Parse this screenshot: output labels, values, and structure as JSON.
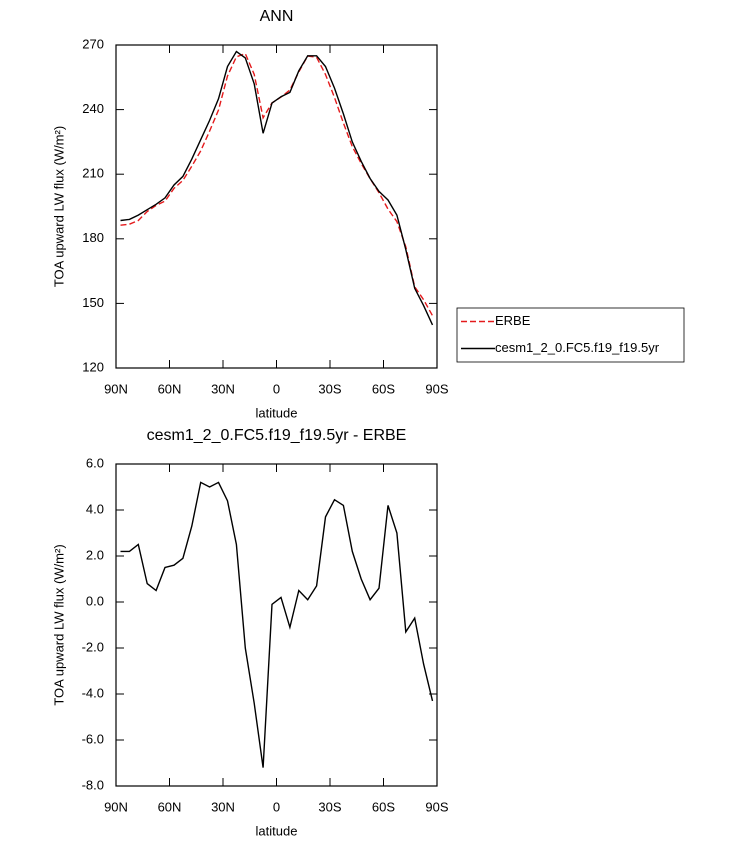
{
  "chart_data": [
    {
      "type": "line",
      "title": "ANN",
      "xlabel": "latitude",
      "ylabel": "TOA upward LW flux (W/m²)",
      "x": [
        87.5,
        82.5,
        77.5,
        72.5,
        67.5,
        62.5,
        57.5,
        52.5,
        47.5,
        42.5,
        37.5,
        32.5,
        27.5,
        22.5,
        17.5,
        12.5,
        7.5,
        2.5,
        -2.5,
        -7.5,
        -12.5,
        -17.5,
        -22.5,
        -27.5,
        -32.5,
        -37.5,
        -42.5,
        -47.5,
        -52.5,
        -57.5,
        -62.5,
        -67.5,
        -72.5,
        -77.5,
        -82.5,
        -87.5
      ],
      "series": [
        {
          "name": "ERBE",
          "color": "#e41a1c",
          "style": "dashed",
          "values": [
            186.3,
            186.8,
            188.5,
            192.7,
            195.5,
            197.5,
            203.4,
            207.1,
            213.7,
            220.8,
            230,
            239.8,
            255.6,
            264.5,
            266,
            256.4,
            236.2,
            243.1,
            245.8,
            249.1,
            257.5,
            264.9,
            264.3,
            256.3,
            245.6,
            233.8,
            222.8,
            215,
            207.9,
            201.4,
            193.8,
            188,
            176.3,
            157.7,
            151.7,
            144.3
          ]
        },
        {
          "name": "cesm1_2_0.FC5.f19_f19.5yr",
          "color": "#000000",
          "style": "solid",
          "values": [
            188.5,
            189,
            191,
            193.5,
            196,
            199,
            205,
            209,
            217,
            226,
            235,
            245,
            260,
            267,
            264,
            252,
            229,
            243,
            246,
            248,
            258,
            265,
            265,
            260,
            250,
            238,
            225,
            216,
            208,
            202,
            198,
            191,
            175,
            157,
            149,
            140
          ]
        }
      ],
      "xlim": [
        90,
        -90
      ],
      "xticks": [
        {
          "value": 90,
          "label": "90N"
        },
        {
          "value": 60,
          "label": "60N"
        },
        {
          "value": 30,
          "label": "30N"
        },
        0,
        {
          "value": -30,
          "label": "30S"
        },
        {
          "value": -60,
          "label": "60S"
        },
        {
          "value": -90,
          "label": "90S"
        }
      ],
      "ylim": [
        120,
        270
      ],
      "yticks": [
        120,
        150,
        180,
        210,
        240,
        270
      ],
      "legend": "outside right"
    },
    {
      "type": "line",
      "title": "cesm1_2_0.FC5.f19_f19.5yr - ERBE",
      "xlabel": "latitude",
      "ylabel": "TOA upward LW flux (W/m²)",
      "x": [
        87.5,
        82.5,
        77.5,
        72.5,
        67.5,
        62.5,
        57.5,
        52.5,
        47.5,
        42.5,
        37.5,
        32.5,
        27.5,
        22.5,
        17.5,
        12.5,
        7.5,
        2.5,
        -2.5,
        -7.5,
        -12.5,
        -17.5,
        -22.5,
        -27.5,
        -32.5,
        -37.5,
        -42.5,
        -47.5,
        -52.5,
        -57.5,
        -62.5,
        -67.5,
        -72.5,
        -77.5,
        -82.5,
        -87.5
      ],
      "color": "#000000",
      "values": [
        2.2,
        2.2,
        2.5,
        0.8,
        0.5,
        1.5,
        1.6,
        1.9,
        3.3,
        5.2,
        5.0,
        5.2,
        4.4,
        2.5,
        -2.0,
        -4.4,
        -7.2,
        -0.1,
        0.2,
        -1.1,
        0.5,
        0.1,
        0.7,
        3.7,
        4.45,
        4.2,
        2.2,
        1.0,
        0.1,
        0.6,
        4.2,
        3.0,
        -1.3,
        -0.7,
        -2.7,
        -4.3
      ],
      "xlim": [
        90,
        -90
      ],
      "xticks": [
        {
          "value": 90,
          "label": "90N"
        },
        {
          "value": 60,
          "label": "60N"
        },
        {
          "value": 30,
          "label": "30N"
        },
        0,
        {
          "value": -30,
          "label": "30S"
        },
        {
          "value": -60,
          "label": "60S"
        },
        {
          "value": -90,
          "label": "90S"
        }
      ],
      "ylim": [
        -8,
        6
      ],
      "yticks": [
        {
          "value": -8,
          "label": "-8.0"
        },
        {
          "value": -6,
          "label": "-6.0"
        },
        {
          "value": -4,
          "label": "-4.0"
        },
        {
          "value": -2,
          "label": "-2.0"
        },
        {
          "value": 0,
          "label": "0.0"
        },
        {
          "value": 2,
          "label": "2.0"
        },
        {
          "value": 4,
          "label": "4.0"
        },
        {
          "value": 6,
          "label": "6.0"
        }
      ]
    }
  ]
}
